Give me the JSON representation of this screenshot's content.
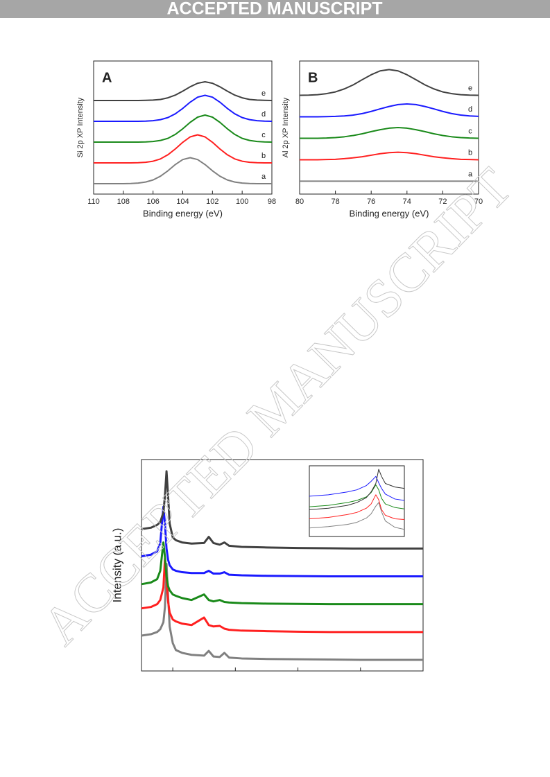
{
  "header": "ACCEPTED MANUSCRIPT",
  "watermark": "ACCEPTED MANUSCRIPT",
  "chart_data": [
    {
      "type": "line",
      "panel": "A",
      "x_label": "Binding energy (eV)",
      "y_label": "Si 2p XP Intensity",
      "x": [
        110,
        109.5,
        109,
        108.5,
        108,
        107.5,
        107,
        106.5,
        106,
        105.5,
        105,
        104.5,
        104,
        103.5,
        103,
        102.5,
        102,
        101.5,
        101,
        100.5,
        100,
        99.5,
        99,
        98.5,
        98
      ],
      "xlim": [
        110,
        98
      ],
      "xticks": [
        110,
        108,
        106,
        104,
        102,
        100,
        98
      ],
      "ylim": [
        -0.5,
        5.9
      ],
      "series": [
        {
          "name": "a",
          "color": "#808080",
          "values": [
            0,
            0,
            0,
            0,
            0,
            0.01,
            0.03,
            0.08,
            0.18,
            0.36,
            0.62,
            0.92,
            1.16,
            1.25,
            1.16,
            0.92,
            0.62,
            0.36,
            0.18,
            0.08,
            0.03,
            0.01,
            0,
            0,
            0
          ]
        },
        {
          "name": "b",
          "color": "#ff2020",
          "values": [
            1,
            1,
            1,
            1,
            1,
            1,
            1.01,
            1.03,
            1.08,
            1.19,
            1.39,
            1.67,
            1.99,
            2.25,
            2.35,
            2.25,
            1.99,
            1.67,
            1.39,
            1.19,
            1.08,
            1.03,
            1.01,
            1,
            1
          ]
        },
        {
          "name": "c",
          "color": "#1a8a1a",
          "values": [
            2,
            2,
            2,
            2,
            2,
            2,
            2,
            2.01,
            2.03,
            2.08,
            2.18,
            2.37,
            2.64,
            2.95,
            3.2,
            3.3,
            3.2,
            2.95,
            2.64,
            2.37,
            2.18,
            2.08,
            2.03,
            2.01,
            2
          ]
        },
        {
          "name": "d",
          "color": "#1a1aff",
          "values": [
            3,
            3,
            3,
            3,
            3,
            3,
            3,
            3.01,
            3.03,
            3.08,
            3.18,
            3.36,
            3.62,
            3.92,
            4.16,
            4.25,
            4.16,
            3.92,
            3.62,
            3.36,
            3.18,
            3.08,
            3.03,
            3.01,
            3
          ]
        },
        {
          "name": "e",
          "color": "#404040",
          "values": [
            4,
            4,
            4,
            4,
            4,
            4,
            4,
            4.01,
            4.02,
            4.05,
            4.13,
            4.26,
            4.45,
            4.66,
            4.83,
            4.9,
            4.83,
            4.66,
            4.45,
            4.26,
            4.13,
            4.05,
            4.02,
            4.01,
            4
          ]
        }
      ]
    },
    {
      "type": "line",
      "panel": "B",
      "x_label": "Binding energy (eV)",
      "y_label": "Al 2p XP Intensity",
      "x": [
        80,
        79.5,
        79,
        78.5,
        78,
        77.5,
        77,
        76.5,
        76,
        75.5,
        75,
        74.5,
        74,
        73.5,
        73,
        72.5,
        72,
        71.5,
        71,
        70.5,
        70
      ],
      "xlim": [
        80,
        70
      ],
      "xticks": [
        80,
        78,
        76,
        74,
        72,
        70
      ],
      "ylim": [
        -0.6,
        5.6
      ],
      "series": [
        {
          "name": "a",
          "color": "#808080",
          "values": [
            0,
            0,
            0,
            0,
            0,
            0,
            0,
            0,
            0,
            0,
            0,
            0,
            0,
            0,
            0,
            0,
            0,
            0,
            0,
            0,
            0
          ]
        },
        {
          "name": "b",
          "color": "#ff2020",
          "values": [
            1,
            1,
            1,
            1.01,
            1.02,
            1.05,
            1.09,
            1.14,
            1.21,
            1.28,
            1.33,
            1.35,
            1.33,
            1.28,
            1.21,
            1.14,
            1.09,
            1.05,
            1.02,
            1.01,
            1
          ]
        },
        {
          "name": "c",
          "color": "#1a8a1a",
          "values": [
            2,
            2,
            2,
            2.01,
            2.03,
            2.07,
            2.13,
            2.21,
            2.31,
            2.4,
            2.47,
            2.5,
            2.47,
            2.4,
            2.31,
            2.21,
            2.13,
            2.07,
            2.03,
            2.01,
            2
          ]
        },
        {
          "name": "d",
          "color": "#1a1aff",
          "values": [
            3,
            3,
            3,
            3.01,
            3.02,
            3.04,
            3.08,
            3.15,
            3.25,
            3.37,
            3.48,
            3.57,
            3.6,
            3.57,
            3.48,
            3.37,
            3.25,
            3.15,
            3.08,
            3.04,
            3.02
          ]
        },
        {
          "name": "e",
          "color": "#404040",
          "values": [
            4,
            4.01,
            4.03,
            4.08,
            4.16,
            4.3,
            4.49,
            4.73,
            4.96,
            5.14,
            5.2,
            5.14,
            4.96,
            4.73,
            4.49,
            4.3,
            4.16,
            4.08,
            4.03,
            4.01,
            4
          ]
        }
      ]
    },
    {
      "type": "line",
      "y_label": "Intensity (a.u.)",
      "x": [
        0,
        0.3,
        0.5,
        0.6,
        0.7,
        0.75,
        0.8,
        0.85,
        0.9,
        1.0,
        1.1,
        1.3,
        1.6,
        2.0,
        2.15,
        2.3,
        2.5,
        2.65,
        2.8,
        3.2,
        4,
        5,
        6,
        7,
        8,
        9
      ],
      "xlim": [
        0,
        9
      ],
      "xticks": [
        1,
        3,
        5,
        7,
        9
      ],
      "ylim": [
        -0.4,
        7.2
      ],
      "series": [
        {
          "color": "#808080",
          "values": [
            0.87,
            0.92,
            1.0,
            1.1,
            1.35,
            1.9,
            3.45,
            2.3,
            1.2,
            0.6,
            0.35,
            0.25,
            0.18,
            0.15,
            0.32,
            0.12,
            0.1,
            0.25,
            0.08,
            0.05,
            0.03,
            0.02,
            0.01,
            0,
            0,
            0
          ]
        },
        {
          "color": "#ff2020",
          "values": [
            1.85,
            1.9,
            2.0,
            2.15,
            2.6,
            3.65,
            2.9,
            2.1,
            1.7,
            1.45,
            1.38,
            1.3,
            1.25,
            1.52,
            1.25,
            1.2,
            1.22,
            1.12,
            1.08,
            1.05,
            1.03,
            1.01,
            1,
            1,
            1,
            1
          ]
        },
        {
          "color": "#1a8a1a",
          "values": [
            2.72,
            2.78,
            2.9,
            3.2,
            4.22,
            3.7,
            3.0,
            2.65,
            2.5,
            2.35,
            2.3,
            2.22,
            2.15,
            2.35,
            2.15,
            2.1,
            2.15,
            2.08,
            2.06,
            2.04,
            2.02,
            2.01,
            2,
            2,
            2,
            2
          ]
        },
        {
          "color": "#1a1aff",
          "values": [
            3.72,
            3.78,
            3.9,
            4.2,
            5.5,
            4.9,
            4.0,
            3.6,
            3.4,
            3.25,
            3.2,
            3.15,
            3.12,
            3.12,
            3.2,
            3.1,
            3.1,
            3.15,
            3.06,
            3.04,
            3.02,
            3.01,
            3,
            3,
            3,
            3
          ]
        },
        {
          "color": "#404040",
          "values": [
            4.7,
            4.75,
            4.85,
            4.95,
            5.3,
            5.9,
            6.78,
            5.9,
            4.9,
            4.4,
            4.3,
            4.22,
            4.18,
            4.2,
            4.42,
            4.2,
            4.14,
            4.22,
            4.1,
            4.06,
            4.04,
            4.02,
            4.01,
            4,
            4,
            4
          ]
        }
      ]
    },
    {
      "type": "line",
      "x": [
        0,
        2,
        4,
        5,
        6,
        6.5,
        7,
        7.3,
        7.6,
        8,
        9,
        10
      ],
      "xlim": [
        0,
        10
      ],
      "ylim": [
        0,
        10
      ],
      "series": [
        {
          "color": "#808080",
          "values": [
            1.2,
            1.4,
            1.7,
            2.0,
            2.6,
            3.2,
            4.3,
            4.8,
            3.5,
            2.2,
            1.3,
            1.0
          ]
        },
        {
          "color": "#ff2020",
          "values": [
            2.5,
            2.7,
            3.1,
            3.4,
            4.0,
            4.6,
            5.9,
            5.2,
            3.8,
            3.0,
            2.5,
            2.4
          ]
        },
        {
          "color": "#1a8a1a",
          "values": [
            4.2,
            4.4,
            4.8,
            5.1,
            5.6,
            6.2,
            7.3,
            6.6,
            5.4,
            4.6,
            4.1,
            3.9
          ]
        },
        {
          "color": "#1a1aff",
          "values": [
            5.7,
            5.9,
            6.3,
            6.6,
            7.2,
            7.8,
            8.5,
            7.6,
            6.8,
            6.0,
            5.3,
            5.1
          ]
        },
        {
          "color": "#303030",
          "values": [
            3.8,
            4.0,
            4.4,
            4.8,
            5.5,
            6.3,
            7.5,
            9.5,
            8.5,
            7.5,
            7.0,
            6.8
          ]
        }
      ]
    }
  ]
}
